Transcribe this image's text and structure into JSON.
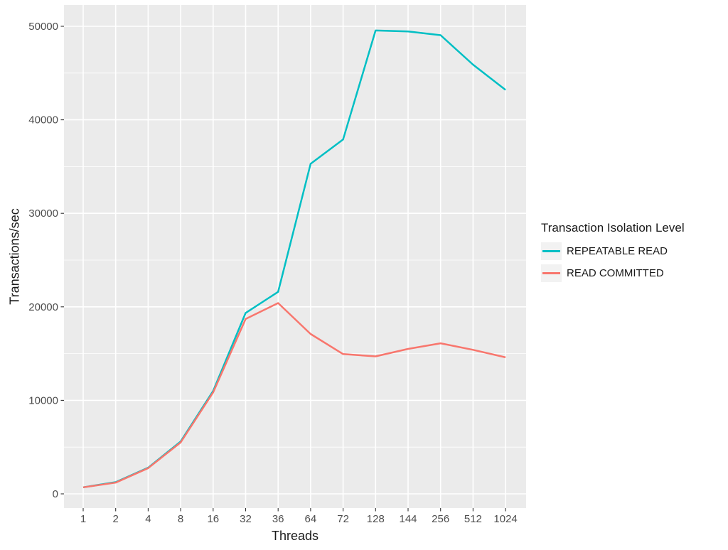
{
  "chart_data": {
    "type": "line",
    "title": "",
    "xlabel": "Threads",
    "ylabel": "Transactions/sec",
    "categories": [
      "1",
      "2",
      "4",
      "8",
      "16",
      "32",
      "36",
      "64",
      "72",
      "128",
      "144",
      "256",
      "512",
      "1024"
    ],
    "y_ticks": [
      0,
      10000,
      20000,
      30000,
      40000,
      50000
    ],
    "y_ticks_minor": [
      5000,
      15000,
      25000,
      35000,
      45000
    ],
    "ylim": [
      0,
      50000
    ],
    "grid": "white major and minor gridlines on grey panel",
    "legend_title": "Transaction Isolation Level",
    "legend_position": "right",
    "series": [
      {
        "name": "REPEATABLE READ",
        "color": "#00BFC4",
        "values": [
          700,
          1250,
          2800,
          5600,
          11000,
          19350,
          21600,
          35300,
          37900,
          49550,
          49450,
          49050,
          45900,
          43200
        ]
      },
      {
        "name": "READ COMMITTED",
        "color": "#F8766D",
        "values": [
          700,
          1200,
          2750,
          5500,
          10850,
          18700,
          20400,
          17100,
          14950,
          14700,
          15500,
          16100,
          15400,
          14600
        ]
      }
    ]
  },
  "style": {
    "panel_bg": "#EBEBEB",
    "grid_color": "#FFFFFF",
    "tick_color": "#333333",
    "tick_text": "#4D4D4D",
    "title_text": "#1A1A1A",
    "legend_key_bg": "#F2F2F2"
  }
}
